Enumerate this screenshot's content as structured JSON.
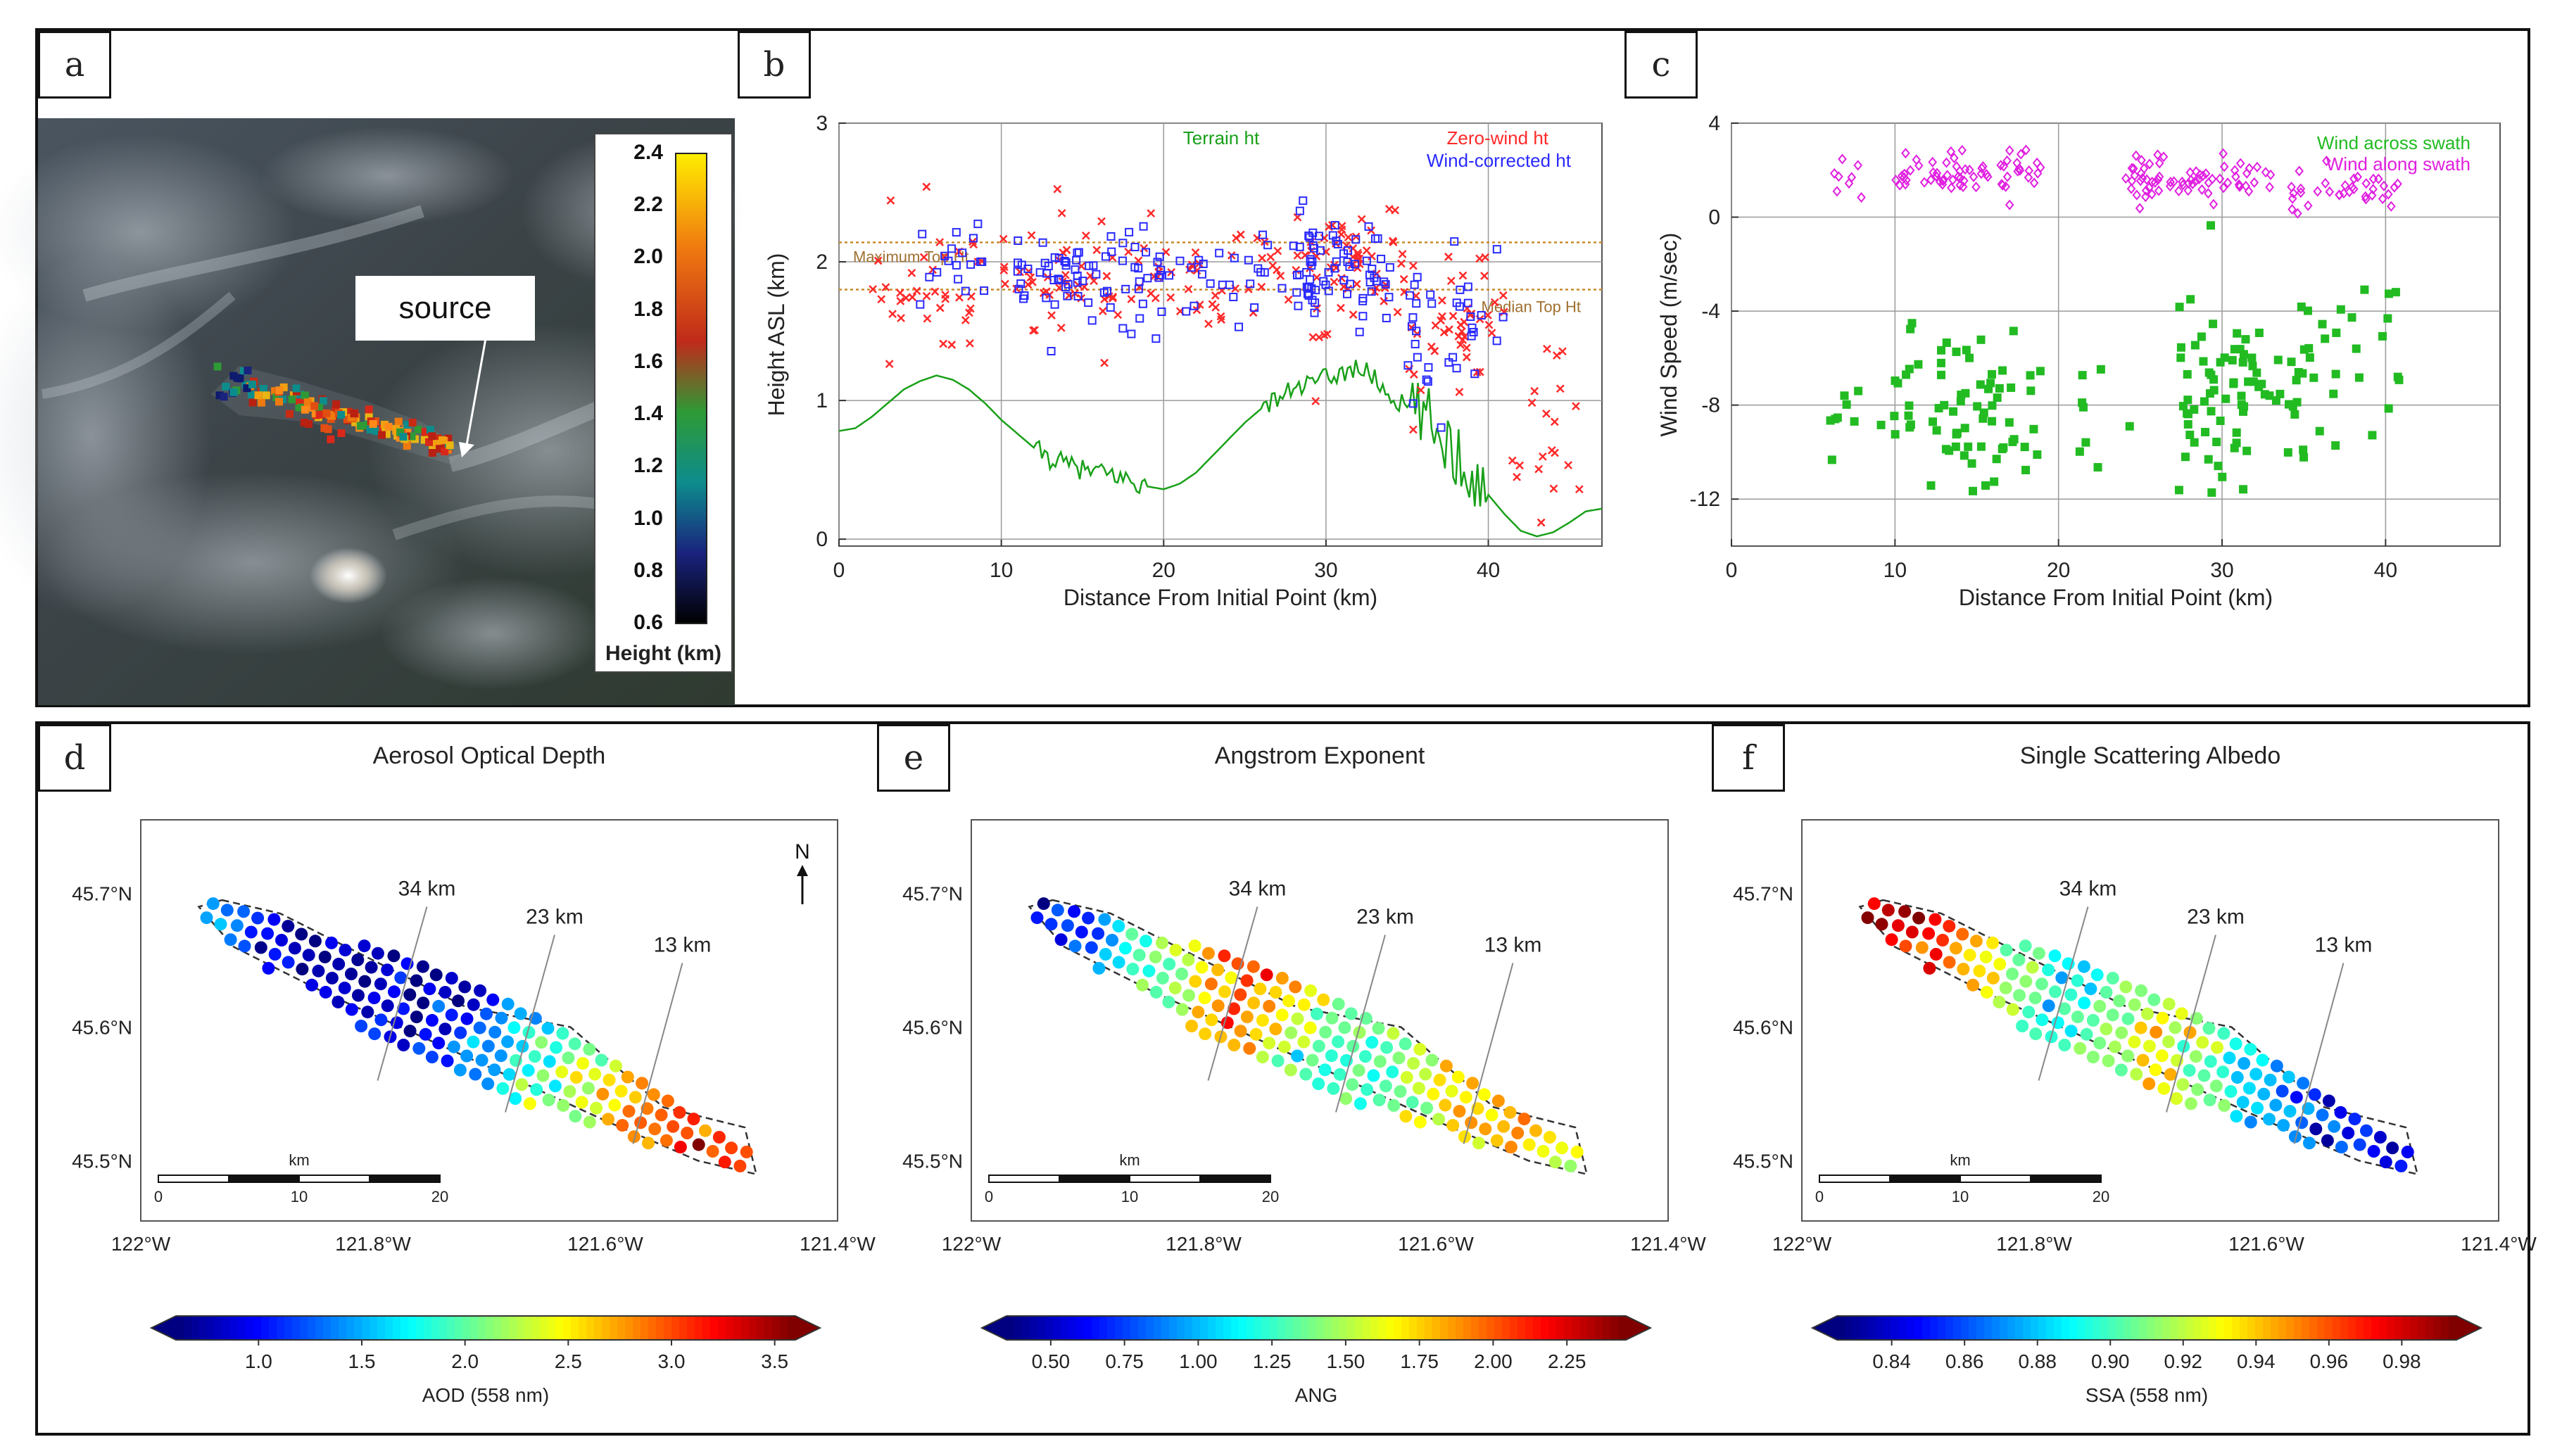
{
  "panels": {
    "a": {
      "label": "a"
    },
    "b": {
      "label": "b"
    },
    "c": {
      "label": "c"
    },
    "d": {
      "label": "d"
    },
    "e": {
      "label": "e"
    },
    "f": {
      "label": "f"
    }
  },
  "panel_a": {
    "source_label": "source",
    "colorbar_title": "Height (km)",
    "colorbar_ticks": [
      "2.4",
      "2.2",
      "2.0",
      "1.8",
      "1.6",
      "1.4",
      "1.2",
      "1.0",
      "0.8",
      "0.6"
    ]
  },
  "chart_data": [
    {
      "panel": "b",
      "type": "scatter",
      "xlabel": "Distance From Initial Point (km)",
      "ylabel": "Height ASL (km)",
      "xlim": [
        0,
        47
      ],
      "ylim": [
        -0.05,
        3
      ],
      "xticks": [
        0,
        10,
        20,
        30,
        40
      ],
      "yticks": [
        0,
        1,
        2,
        3
      ],
      "grid": true,
      "legend_labels": {
        "terrain": "Terrain ht",
        "zero": "Zero-wind ht",
        "corr": "Wind-corrected ht"
      },
      "legend_colors": {
        "terrain": "#19a019",
        "zero": "#ff2a2a",
        "corr": "#2a2aff"
      },
      "reference_lines": [
        {
          "label": "Maximum Top Ht",
          "y": 2.14
        },
        {
          "label": "Median Top Ht",
          "y": 1.8
        }
      ],
      "terrain_profile": [
        [
          0,
          0.78
        ],
        [
          1,
          0.8
        ],
        [
          2,
          0.88
        ],
        [
          3,
          0.98
        ],
        [
          4,
          1.08
        ],
        [
          5,
          1.14
        ],
        [
          6,
          1.18
        ],
        [
          7,
          1.15
        ],
        [
          8,
          1.08
        ],
        [
          9,
          0.98
        ],
        [
          10,
          0.86
        ],
        [
          11,
          0.76
        ],
        [
          12,
          0.66
        ],
        [
          13,
          0.58
        ],
        [
          14,
          0.54
        ],
        [
          15,
          0.5
        ],
        [
          16,
          0.48
        ],
        [
          17,
          0.46
        ],
        [
          18,
          0.42
        ],
        [
          19,
          0.38
        ],
        [
          20,
          0.36
        ],
        [
          21,
          0.4
        ],
        [
          22,
          0.48
        ],
        [
          23,
          0.6
        ],
        [
          24,
          0.72
        ],
        [
          25,
          0.84
        ],
        [
          26,
          0.94
        ],
        [
          27,
          1.02
        ],
        [
          28,
          1.08
        ],
        [
          29,
          1.12
        ],
        [
          30,
          1.16
        ],
        [
          31,
          1.2
        ],
        [
          32,
          1.24
        ],
        [
          33,
          1.16
        ],
        [
          34,
          1.02
        ],
        [
          35,
          0.95
        ],
        [
          36,
          0.88
        ],
        [
          37,
          0.78
        ],
        [
          38,
          0.62
        ],
        [
          39,
          0.48
        ],
        [
          40,
          0.32
        ],
        [
          41,
          0.18
        ],
        [
          42,
          0.06
        ],
        [
          43,
          0.02
        ],
        [
          44,
          0.05
        ],
        [
          45,
          0.12
        ],
        [
          46,
          0.2
        ],
        [
          47,
          0.22
        ]
      ],
      "series": [
        {
          "name": "Zero-wind ht",
          "color": "#ff2a2a",
          "marker": "x",
          "cloud": [
            [
              1,
              9,
              1.85,
              0.45,
              38
            ],
            [
              10,
              20,
              1.9,
              0.35,
              60
            ],
            [
              20,
              29,
              1.9,
              0.3,
              40
            ],
            [
              29,
              35,
              1.95,
              0.35,
              60
            ],
            [
              35,
              41,
              1.5,
              0.5,
              45
            ],
            [
              41,
              46,
              0.9,
              0.7,
              20
            ]
          ]
        },
        {
          "name": "Wind-corrected ht",
          "color": "#2a2aff",
          "marker": "s",
          "cloud": [
            [
              5,
              9,
              2.0,
              0.25,
              18
            ],
            [
              11,
              20,
              1.9,
              0.3,
              70
            ],
            [
              20,
              28,
              1.95,
              0.25,
              25
            ],
            [
              28,
              34,
              1.95,
              0.3,
              70
            ],
            [
              35,
              41,
              1.55,
              0.4,
              35
            ]
          ]
        }
      ]
    },
    {
      "panel": "c",
      "type": "scatter",
      "xlabel": "Distance From Initial Point (km)",
      "ylabel": "Wind Speed (m/sec)",
      "xlim": [
        0,
        47
      ],
      "ylim": [
        -14,
        4
      ],
      "xticks": [
        0,
        10,
        20,
        30,
        40
      ],
      "yticks": [
        4,
        0,
        -4,
        -8,
        -12
      ],
      "grid": true,
      "series": [
        {
          "name": "Wind across swath",
          "color": "#22bb22",
          "marker": "s",
          "cloud": [
            [
              6,
              10,
              -8,
              2.5,
              10
            ],
            [
              10,
              19,
              -8,
              3.0,
              70
            ],
            [
              20,
              25,
              -9,
              3,
              8
            ],
            [
              27,
              35,
              -7.5,
              3.5,
              80
            ],
            [
              35,
              41,
              -6,
              2.5,
              25
            ]
          ]
        },
        {
          "name": "Wind along swath",
          "color": "#e020e0",
          "marker": "d",
          "cloud": [
            [
              6,
              8,
              1.6,
              0.8,
              8
            ],
            [
              10,
              19,
              1.8,
              0.8,
              65
            ],
            [
              24,
              33,
              1.6,
              0.7,
              70
            ],
            [
              34,
              41,
              1.0,
              0.7,
              35
            ]
          ]
        }
      ]
    },
    {
      "panel": "d",
      "type": "scatter",
      "title": "Aerosol Optical Depth",
      "colorbar_label": "AOD (558 nm)",
      "colorbar_ticks": [
        "1.0",
        "1.5",
        "2.0",
        "2.5",
        "3.0",
        "3.5"
      ],
      "value_range": [
        0.6,
        3.6
      ],
      "lat_ticks": [
        "45.7°N",
        "45.6°N",
        "45.5°N"
      ],
      "lon_ticks": [
        "122°W",
        "121.8°W",
        "121.6°W",
        "121.4°W"
      ],
      "xlim": [
        -122.0,
        -121.4
      ],
      "ylim": [
        45.455,
        45.755
      ],
      "distance_markers": [
        {
          "label": "34 km",
          "lon": -121.79
        },
        {
          "label": "23 km",
          "lon": -121.68
        },
        {
          "label": "13 km",
          "lon": -121.57
        }
      ],
      "scale_bar": {
        "title": "km",
        "ticks": [
          "0",
          "10",
          "20"
        ]
      },
      "north_label": "N",
      "along_profile": [
        [
          0,
          1.5
        ],
        [
          0.06,
          1.2
        ],
        [
          0.15,
          0.75
        ],
        [
          0.4,
          0.8
        ],
        [
          0.5,
          1.2
        ],
        [
          0.58,
          1.8
        ],
        [
          0.68,
          2.2
        ],
        [
          0.8,
          2.9
        ],
        [
          0.9,
          3.2
        ],
        [
          1,
          2.9
        ]
      ]
    },
    {
      "panel": "e",
      "type": "scatter",
      "title": "Angstrom Exponent",
      "colorbar_label": "ANG",
      "colorbar_ticks": [
        "0.50",
        "0.75",
        "1.00",
        "1.25",
        "1.50",
        "1.75",
        "2.00",
        "2.25"
      ],
      "value_range": [
        0.35,
        2.45
      ],
      "lat_ticks": [
        "45.7°N",
        "45.6°N",
        "45.5°N"
      ],
      "lon_ticks": [
        "122°W",
        "121.8°W",
        "121.6°W",
        "121.4°W"
      ],
      "xlim": [
        -122.0,
        -121.4
      ],
      "ylim": [
        45.455,
        45.755
      ],
      "distance_markers": [
        {
          "label": "34 km",
          "lon": -121.79
        },
        {
          "label": "23 km",
          "lon": -121.68
        },
        {
          "label": "13 km",
          "lon": -121.57
        }
      ],
      "scale_bar": {
        "title": "km",
        "ticks": [
          "0",
          "10",
          "20"
        ]
      },
      "along_profile": [
        [
          0,
          0.5
        ],
        [
          0.08,
          0.8
        ],
        [
          0.18,
          1.2
        ],
        [
          0.3,
          1.75
        ],
        [
          0.38,
          2.0
        ],
        [
          0.48,
          1.5
        ],
        [
          0.56,
          1.25
        ],
        [
          0.7,
          1.5
        ],
        [
          0.8,
          1.85
        ],
        [
          1,
          1.5
        ]
      ]
    },
    {
      "panel": "f",
      "type": "scatter",
      "title": "Single Scattering Albedo",
      "colorbar_label": "SSA (558 nm)",
      "colorbar_ticks": [
        "0.84",
        "0.86",
        "0.88",
        "0.90",
        "0.92",
        "0.94",
        "0.96",
        "0.98"
      ],
      "value_range": [
        0.825,
        0.995
      ],
      "lat_ticks": [
        "45.7°N",
        "45.6°N",
        "45.5°N"
      ],
      "lon_ticks": [
        "122°W",
        "121.8°W",
        "121.6°W",
        "121.4°W"
      ],
      "xlim": [
        -122.0,
        -121.4
      ],
      "ylim": [
        45.455,
        45.755
      ],
      "distance_markers": [
        {
          "label": "34 km",
          "lon": -121.79
        },
        {
          "label": "23 km",
          "lon": -121.68
        },
        {
          "label": "13 km",
          "lon": -121.57
        }
      ],
      "scale_bar": {
        "title": "km",
        "ticks": [
          "0",
          "10",
          "20"
        ]
      },
      "along_profile": [
        [
          0,
          0.98
        ],
        [
          0.12,
          0.97
        ],
        [
          0.22,
          0.93
        ],
        [
          0.35,
          0.89
        ],
        [
          0.45,
          0.91
        ],
        [
          0.55,
          0.93
        ],
        [
          0.65,
          0.9
        ],
        [
          0.75,
          0.87
        ],
        [
          0.88,
          0.85
        ],
        [
          1,
          0.84
        ]
      ]
    }
  ]
}
